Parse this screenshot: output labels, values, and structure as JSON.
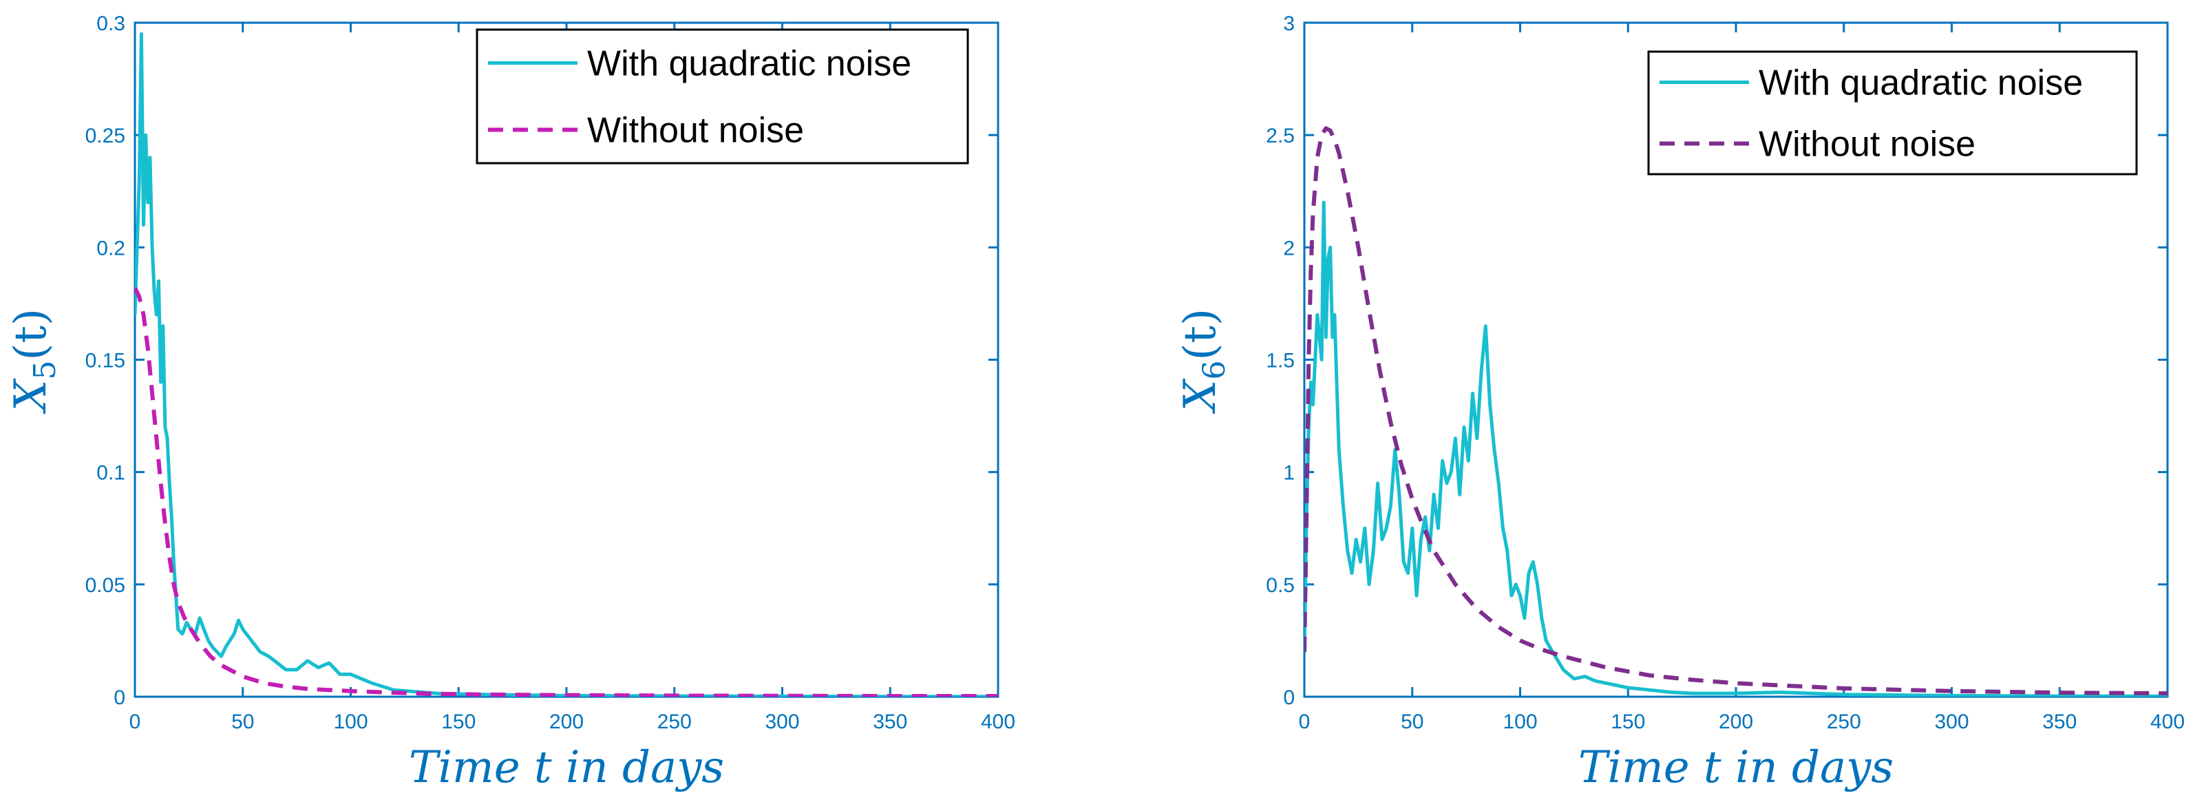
{
  "chart_data": [
    {
      "type": "line",
      "xlabel": "Time t in days",
      "ylabel": "X_5(t)",
      "ylabel_base": "X",
      "ylabel_sub": "5",
      "ylabel_rest": "(t)",
      "xlim": [
        0,
        400
      ],
      "ylim": [
        0,
        0.3
      ],
      "xticks": [
        0,
        50,
        100,
        150,
        200,
        250,
        300,
        350,
        400
      ],
      "yticks": [
        0,
        0.05,
        0.1,
        0.15,
        0.2,
        0.25,
        0.3
      ],
      "yticklabels": [
        "0",
        "0.05",
        "0.1",
        "0.15",
        "0.2",
        "0.25",
        "0.3"
      ],
      "grid": false,
      "legend_position": "top-right",
      "series": [
        {
          "name": "With quadratic noise",
          "color": "#17becf",
          "style": "solid",
          "x": [
            0,
            1,
            2,
            3,
            4,
            5,
            6,
            7,
            8,
            9,
            10,
            11,
            12,
            13,
            14,
            15,
            16,
            17,
            18,
            19,
            20,
            22,
            24,
            26,
            28,
            30,
            32,
            34,
            36,
            38,
            40,
            42,
            44,
            46,
            48,
            50,
            54,
            58,
            62,
            66,
            70,
            75,
            80,
            85,
            90,
            95,
            100,
            105,
            110,
            120,
            140,
            160,
            200,
            250,
            300,
            350,
            400
          ],
          "y": [
            0.17,
            0.2,
            0.23,
            0.295,
            0.21,
            0.25,
            0.22,
            0.24,
            0.2,
            0.18,
            0.17,
            0.185,
            0.14,
            0.165,
            0.12,
            0.115,
            0.095,
            0.08,
            0.06,
            0.045,
            0.03,
            0.028,
            0.033,
            0.03,
            0.028,
            0.035,
            0.03,
            0.025,
            0.022,
            0.02,
            0.018,
            0.022,
            0.025,
            0.028,
            0.034,
            0.03,
            0.025,
            0.02,
            0.018,
            0.015,
            0.012,
            0.012,
            0.016,
            0.013,
            0.015,
            0.01,
            0.01,
            0.008,
            0.006,
            0.003,
            0.0015,
            0.001,
            0.0005,
            0.0003,
            0.0002,
            0.0001,
            0.0001
          ]
        },
        {
          "name": "Without noise",
          "color": "#c31eb4",
          "style": "dashed",
          "x": [
            0,
            2,
            4,
            6,
            8,
            10,
            12,
            14,
            16,
            18,
            20,
            23,
            26,
            30,
            35,
            40,
            50,
            60,
            70,
            80,
            90,
            100,
            120,
            140,
            160,
            200,
            250,
            300,
            350,
            400
          ],
          "y": [
            0.182,
            0.178,
            0.17,
            0.155,
            0.135,
            0.115,
            0.095,
            0.077,
            0.062,
            0.05,
            0.042,
            0.035,
            0.03,
            0.024,
            0.018,
            0.014,
            0.009,
            0.006,
            0.0045,
            0.0035,
            0.003,
            0.0025,
            0.0018,
            0.0013,
            0.001,
            0.0007,
            0.0005,
            0.0004,
            0.0003,
            0.0003
          ]
        }
      ]
    },
    {
      "type": "line",
      "xlabel": "Time t in days",
      "ylabel": "X_6(t)",
      "ylabel_base": "X",
      "ylabel_sub": "6",
      "ylabel_rest": "(t)",
      "xlim": [
        0,
        400
      ],
      "ylim": [
        0,
        3
      ],
      "xticks": [
        0,
        50,
        100,
        150,
        200,
        250,
        300,
        350,
        400
      ],
      "yticks": [
        0,
        0.5,
        1,
        1.5,
        2,
        2.5,
        3
      ],
      "yticklabels": [
        "0",
        "0.5",
        "1",
        "1.5",
        "2",
        "2.5",
        "3"
      ],
      "grid": false,
      "legend_position": "top-right",
      "series": [
        {
          "name": "With quadratic noise",
          "color": "#17becf",
          "style": "solid",
          "x": [
            0,
            1,
            2,
            3,
            4,
            6,
            8,
            9,
            10,
            11,
            12,
            13,
            14,
            15,
            16,
            18,
            20,
            22,
            24,
            26,
            28,
            30,
            32,
            34,
            36,
            38,
            40,
            42,
            44,
            46,
            48,
            50,
            52,
            54,
            56,
            58,
            60,
            62,
            64,
            66,
            68,
            70,
            72,
            74,
            76,
            78,
            80,
            82,
            84,
            86,
            88,
            90,
            92,
            94,
            96,
            98,
            100,
            102,
            104,
            106,
            108,
            110,
            112,
            115,
            120,
            125,
            130,
            135,
            140,
            145,
            150,
            160,
            170,
            180,
            200,
            220,
            250,
            300,
            350,
            400
          ],
          "y": [
            0.2,
            0.8,
            1.2,
            1.4,
            1.3,
            1.7,
            1.5,
            2.2,
            1.6,
            1.95,
            2.0,
            1.6,
            1.7,
            1.4,
            1.1,
            0.85,
            0.65,
            0.55,
            0.7,
            0.6,
            0.75,
            0.5,
            0.65,
            0.95,
            0.7,
            0.75,
            0.85,
            1.1,
            0.9,
            0.6,
            0.55,
            0.75,
            0.45,
            0.7,
            0.8,
            0.65,
            0.9,
            0.75,
            1.05,
            0.95,
            1.0,
            1.15,
            0.9,
            1.2,
            1.05,
            1.35,
            1.15,
            1.45,
            1.65,
            1.3,
            1.1,
            0.95,
            0.75,
            0.65,
            0.45,
            0.5,
            0.45,
            0.35,
            0.55,
            0.6,
            0.5,
            0.35,
            0.25,
            0.2,
            0.12,
            0.08,
            0.09,
            0.07,
            0.06,
            0.05,
            0.04,
            0.03,
            0.02,
            0.015,
            0.015,
            0.02,
            0.01,
            0.005,
            0.003,
            0.002
          ]
        },
        {
          "name": "Without noise",
          "color": "#7e2f8e",
          "style": "dashed",
          "x": [
            0,
            1,
            2,
            3,
            4,
            6,
            8,
            10,
            12,
            14,
            16,
            20,
            25,
            30,
            35,
            40,
            45,
            50,
            55,
            60,
            70,
            80,
            90,
            100,
            110,
            120,
            140,
            160,
            180,
            200,
            250,
            300,
            350,
            400
          ],
          "y": [
            0.2,
            0.8,
            1.5,
            1.9,
            2.15,
            2.4,
            2.5,
            2.53,
            2.52,
            2.48,
            2.42,
            2.25,
            2.0,
            1.72,
            1.45,
            1.22,
            1.03,
            0.88,
            0.76,
            0.65,
            0.5,
            0.39,
            0.31,
            0.25,
            0.21,
            0.18,
            0.13,
            0.095,
            0.075,
            0.06,
            0.037,
            0.025,
            0.018,
            0.015
          ]
        }
      ]
    }
  ]
}
